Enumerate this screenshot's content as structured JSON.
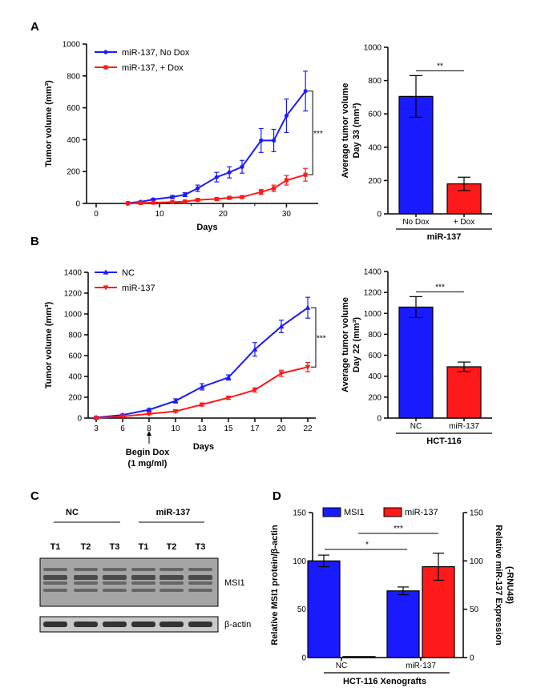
{
  "panels": {
    "A": "A",
    "B": "B",
    "C": "C",
    "D": "D"
  },
  "chart_data": [
    {
      "id": "A-line",
      "type": "line",
      "xlabel": "Days",
      "ylabel": "Tumor volume (mm³)",
      "xlim": [
        0,
        35
      ],
      "ylim": [
        0,
        1000
      ],
      "xticks": [
        0,
        10,
        20,
        30
      ],
      "yticks": [
        0,
        200,
        400,
        600,
        800,
        1000
      ],
      "legend_position": "top-left",
      "significance": "***",
      "series": [
        {
          "name": "miR-137, No Dox",
          "color": "#1a1aff",
          "marker": "circle",
          "x": [
            5,
            7,
            9,
            12,
            14,
            16,
            19,
            21,
            23,
            26,
            28,
            30,
            33
          ],
          "y": [
            3,
            10,
            25,
            40,
            55,
            95,
            165,
            195,
            230,
            395,
            395,
            550,
            705
          ],
          "err": [
            2,
            4,
            6,
            10,
            12,
            20,
            30,
            35,
            40,
            75,
            70,
            105,
            125
          ]
        },
        {
          "name": "miR-137, + Dox",
          "color": "#ff1a1a",
          "marker": "square",
          "x": [
            5,
            7,
            9,
            12,
            14,
            16,
            19,
            21,
            23,
            26,
            28,
            30,
            33
          ],
          "y": [
            1,
            3,
            5,
            8,
            12,
            22,
            28,
            35,
            40,
            72,
            95,
            145,
            180
          ],
          "err": [
            1,
            1,
            2,
            3,
            4,
            6,
            8,
            8,
            8,
            15,
            20,
            30,
            40
          ]
        }
      ]
    },
    {
      "id": "A-bar",
      "type": "bar",
      "ylabel_lines": [
        "Average tumor volume",
        "Day 33 (mm³)"
      ],
      "group_label": "miR-137",
      "ylim": [
        0,
        1000
      ],
      "yticks": [
        0,
        200,
        400,
        600,
        800,
        1000
      ],
      "categories": [
        "No Dox",
        "+ Dox"
      ],
      "values": [
        705,
        180
      ],
      "err": [
        125,
        40
      ],
      "colors": [
        "#1a1aff",
        "#ff1a1a"
      ],
      "significance": "**"
    },
    {
      "id": "B-line",
      "type": "line",
      "xlabel": "Days",
      "ylabel": "Tumor volume (mm³)",
      "ylim": [
        0,
        1400
      ],
      "xticks": [
        3,
        6,
        8,
        10,
        13,
        15,
        17,
        20,
        22
      ],
      "yticks": [
        0,
        200,
        400,
        600,
        800,
        1000,
        1200,
        1400
      ],
      "legend_position": "top-left",
      "significance": "***",
      "annotation": [
        "Begin Dox",
        "(1 mg/ml)"
      ],
      "series": [
        {
          "name": "NC",
          "color": "#1a1aff",
          "marker": "triangle-up",
          "y": [
            5,
            30,
            80,
            165,
            300,
            390,
            660,
            880,
            1060
          ],
          "err": [
            3,
            8,
            12,
            20,
            30,
            25,
            65,
            60,
            100
          ]
        },
        {
          "name": "miR-137",
          "color": "#ff1a1a",
          "marker": "triangle-down",
          "y": [
            2,
            15,
            40,
            65,
            130,
            195,
            270,
            430,
            490
          ],
          "err": [
            2,
            5,
            8,
            10,
            15,
            15,
            20,
            30,
            45
          ]
        }
      ]
    },
    {
      "id": "B-bar",
      "type": "bar",
      "ylabel_lines": [
        "Average tumor volume",
        "Day 22 (mm³)"
      ],
      "group_label": "HCT-116",
      "ylim": [
        0,
        1400
      ],
      "yticks": [
        0,
        200,
        400,
        600,
        800,
        1000,
        1200,
        1400
      ],
      "categories": [
        "NC",
        "miR-137"
      ],
      "values": [
        1060,
        490
      ],
      "err": [
        100,
        45
      ],
      "colors": [
        "#1a1aff",
        "#ff1a1a"
      ],
      "significance": "***"
    },
    {
      "id": "D-bar",
      "type": "bar",
      "ylabel_left": "Relative MSI1 protein/β-actin",
      "ylabel_right": [
        "Relative miR-137 Expression",
        "(-RNU48)"
      ],
      "group_label": "HCT-116 Xenografts",
      "ylim": [
        0,
        150
      ],
      "yticks": [
        0,
        50,
        100,
        150
      ],
      "categories": [
        "NC",
        "miR-137"
      ],
      "series": [
        {
          "name": "MSI1",
          "color": "#1a1aff",
          "values": [
            100,
            69
          ],
          "err": [
            6,
            4
          ]
        },
        {
          "name": "miR-137",
          "color": "#ff1a1a",
          "values": [
            1,
            94
          ],
          "err": [
            0,
            14
          ]
        }
      ],
      "significance": [
        "*",
        "***"
      ]
    }
  ],
  "blot": {
    "groups": [
      "NC",
      "miR-137"
    ],
    "lanes": [
      "T1",
      "T2",
      "T3",
      "T1",
      "T2",
      "T3"
    ],
    "band_labels": [
      "MSI1",
      "β-actin"
    ]
  }
}
